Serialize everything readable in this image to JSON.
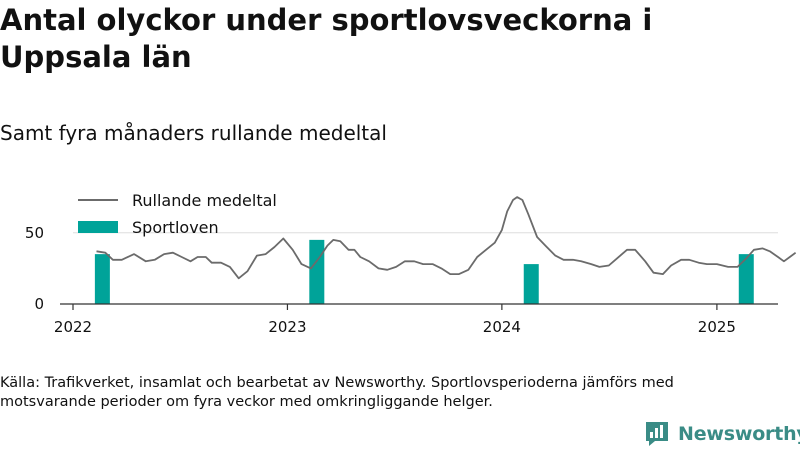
{
  "title": "Antal olyckor under sportlovsveckorna i Uppsala län",
  "subtitle": "Samt fyra månaders rullande medeltal",
  "source": "Källa: Trafikverket, insamlat och bearbetat av Newsworthy. Sportlovsperioderna jämförs med motsvarande perioder om fyra veckor med omkringliggande helger.",
  "brand": {
    "name": "Newsworthy",
    "color": "#3a8c86",
    "icon": "newsworthy-logo-icon"
  },
  "colors": {
    "line": "#6b6b6b",
    "bar": "#00a399",
    "grid": "#dddddd",
    "axis": "#333333"
  },
  "chart_data": {
    "type": "bar+line",
    "xlim": [
      "2022-01-01",
      "2025-04-15"
    ],
    "ylim": [
      0,
      80
    ],
    "yticks": [
      0,
      50
    ],
    "xticks": [
      "2022",
      "2023",
      "2024",
      "2025"
    ],
    "grid": "horizontal",
    "legend": {
      "position": "top-left",
      "entries": [
        "Rullande medeltal",
        "Sportloven"
      ]
    },
    "series": [
      {
        "name": "Sportloven",
        "type": "bar",
        "points": [
          {
            "x": "2022-02-20",
            "y": 35
          },
          {
            "x": "2023-02-20",
            "y": 45
          },
          {
            "x": "2024-02-20",
            "y": 28
          },
          {
            "x": "2025-02-20",
            "y": 35
          }
        ]
      },
      {
        "name": "Rullande medeltal",
        "type": "line",
        "points": [
          [
            "2022-02-10",
            37
          ],
          [
            "2022-02-25",
            36
          ],
          [
            "2022-03-10",
            31
          ],
          [
            "2022-03-25",
            31
          ],
          [
            "2022-04-15",
            35
          ],
          [
            "2022-05-05",
            30
          ],
          [
            "2022-05-20",
            31
          ],
          [
            "2022-06-05",
            35
          ],
          [
            "2022-06-20",
            36
          ],
          [
            "2022-07-05",
            33
          ],
          [
            "2022-07-20",
            30
          ],
          [
            "2022-08-01",
            33
          ],
          [
            "2022-08-15",
            33
          ],
          [
            "2022-08-25",
            29
          ],
          [
            "2022-09-10",
            29
          ],
          [
            "2022-09-25",
            26
          ],
          [
            "2022-10-10",
            18
          ],
          [
            "2022-10-25",
            23
          ],
          [
            "2022-11-10",
            34
          ],
          [
            "2022-11-25",
            35
          ],
          [
            "2022-12-10",
            40
          ],
          [
            "2022-12-25",
            46
          ],
          [
            "2023-01-10",
            38
          ],
          [
            "2023-01-25",
            28
          ],
          [
            "2023-02-10",
            25
          ],
          [
            "2023-02-25",
            33
          ],
          [
            "2023-03-10",
            41
          ],
          [
            "2023-03-20",
            45
          ],
          [
            "2023-04-01",
            44
          ],
          [
            "2023-04-15",
            38
          ],
          [
            "2023-04-25",
            38
          ],
          [
            "2023-05-05",
            33
          ],
          [
            "2023-05-20",
            30
          ],
          [
            "2023-06-05",
            25
          ],
          [
            "2023-06-20",
            24
          ],
          [
            "2023-07-05",
            26
          ],
          [
            "2023-07-20",
            30
          ],
          [
            "2023-08-05",
            30
          ],
          [
            "2023-08-20",
            28
          ],
          [
            "2023-09-05",
            28
          ],
          [
            "2023-09-20",
            25
          ],
          [
            "2023-10-05",
            21
          ],
          [
            "2023-10-20",
            21
          ],
          [
            "2023-11-05",
            24
          ],
          [
            "2023-11-20",
            33
          ],
          [
            "2023-12-05",
            38
          ],
          [
            "2023-12-20",
            43
          ],
          [
            "2024-01-01",
            52
          ],
          [
            "2024-01-10",
            65
          ],
          [
            "2024-01-20",
            73
          ],
          [
            "2024-01-27",
            75
          ],
          [
            "2024-02-05",
            73
          ],
          [
            "2024-02-15",
            63
          ],
          [
            "2024-03-01",
            47
          ],
          [
            "2024-03-15",
            41
          ],
          [
            "2024-04-01",
            34
          ],
          [
            "2024-04-15",
            31
          ],
          [
            "2024-05-01",
            31
          ],
          [
            "2024-05-15",
            30
          ],
          [
            "2024-06-01",
            28
          ],
          [
            "2024-06-15",
            26
          ],
          [
            "2024-07-01",
            27
          ],
          [
            "2024-07-15",
            32
          ],
          [
            "2024-08-01",
            38
          ],
          [
            "2024-08-15",
            38
          ],
          [
            "2024-09-01",
            30
          ],
          [
            "2024-09-15",
            22
          ],
          [
            "2024-10-01",
            21
          ],
          [
            "2024-10-15",
            27
          ],
          [
            "2024-11-01",
            31
          ],
          [
            "2024-11-15",
            31
          ],
          [
            "2024-12-01",
            29
          ],
          [
            "2024-12-15",
            28
          ],
          [
            "2025-01-01",
            28
          ],
          [
            "2025-01-20",
            26
          ],
          [
            "2025-02-05",
            26
          ],
          [
            "2025-02-20",
            32
          ],
          [
            "2025-03-05",
            38
          ],
          [
            "2025-03-20",
            39
          ],
          [
            "2025-04-01",
            37
          ],
          [
            "2025-04-15",
            33
          ],
          [
            "2025-04-25",
            30
          ],
          [
            "2025-05-05",
            33
          ],
          [
            "2025-05-15",
            36
          ]
        ]
      }
    ]
  }
}
